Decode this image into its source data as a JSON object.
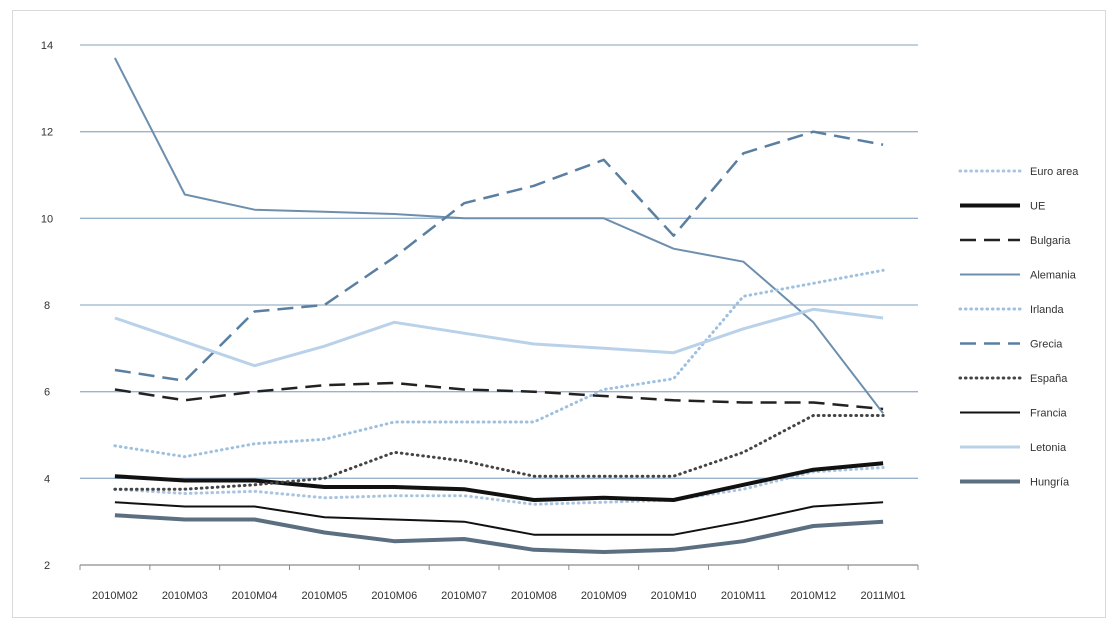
{
  "chart_data": {
    "type": "line",
    "title": "",
    "xlabel": "",
    "ylabel": "",
    "ylim": [
      2,
      14
    ],
    "y_ticks": [
      "2",
      "4",
      "6",
      "8",
      "10",
      "12",
      "14"
    ],
    "categories": [
      "2010M02",
      "2010M03",
      "2010M04",
      "2010M05",
      "2010M06",
      "2010M07",
      "2010M08",
      "2010M09",
      "2010M10",
      "2010M11",
      "2010M12",
      "2011M01"
    ],
    "grid": "horizontal",
    "legend_position": "right",
    "series": [
      {
        "name": "Euro area",
        "color": "#a9c4e0",
        "dash": "dotted",
        "width": 3,
        "values": [
          3.75,
          3.65,
          3.7,
          3.55,
          3.6,
          3.6,
          3.4,
          3.45,
          3.5,
          3.75,
          4.15,
          4.25
        ]
      },
      {
        "name": "UE",
        "color": "#111111",
        "dash": "solid",
        "width": 4,
        "values": [
          4.05,
          3.95,
          3.95,
          3.8,
          3.8,
          3.75,
          3.5,
          3.55,
          3.5,
          3.85,
          4.2,
          4.35
        ]
      },
      {
        "name": "Bulgaria",
        "color": "#222222",
        "dash": "dashed",
        "width": 2.5,
        "values": [
          6.05,
          5.8,
          6.0,
          6.15,
          6.2,
          6.05,
          6.0,
          5.9,
          5.8,
          5.75,
          5.75,
          5.6
        ]
      },
      {
        "name": "Alemania",
        "color": "#6d8fad",
        "dash": "solid",
        "width": 2,
        "values": [
          13.7,
          10.55,
          10.2,
          10.15,
          10.1,
          10.0,
          10.0,
          10.0,
          9.3,
          9.0,
          7.6,
          5.5
        ]
      },
      {
        "name": "Irlanda",
        "color": "#9ec0df",
        "dash": "dotted",
        "width": 3,
        "values": [
          4.75,
          4.5,
          4.8,
          4.9,
          5.3,
          5.3,
          5.3,
          6.05,
          6.3,
          8.2,
          8.5,
          8.8
        ]
      },
      {
        "name": "Grecia",
        "color": "#5a7fa0",
        "dash": "dashed",
        "width": 2.5,
        "values": [
          6.5,
          6.25,
          7.85,
          8.0,
          9.1,
          10.35,
          10.75,
          11.35,
          9.6,
          11.5,
          12.0,
          11.7
        ]
      },
      {
        "name": "España",
        "color": "#444444",
        "dash": "dotted",
        "width": 3,
        "values": [
          3.75,
          3.75,
          3.85,
          4.0,
          4.6,
          4.4,
          4.05,
          4.05,
          4.05,
          4.6,
          5.45,
          5.45
        ]
      },
      {
        "name": "Francia",
        "color": "#111111",
        "dash": "solid",
        "width": 2,
        "values": [
          3.45,
          3.35,
          3.35,
          3.1,
          3.05,
          3.0,
          2.7,
          2.7,
          2.7,
          3.0,
          3.35,
          3.45
        ]
      },
      {
        "name": "Letonia",
        "color": "#b9d2ea",
        "dash": "solid",
        "width": 3,
        "values": [
          7.7,
          7.15,
          6.6,
          7.05,
          7.6,
          7.35,
          7.1,
          7.0,
          6.9,
          7.45,
          7.9,
          7.7
        ]
      },
      {
        "name": "Hungría",
        "color": "#5b6f80",
        "dash": "solid",
        "width": 4,
        "values": [
          3.15,
          3.05,
          3.05,
          2.75,
          2.55,
          2.6,
          2.35,
          2.3,
          2.35,
          2.55,
          2.9,
          3.0
        ]
      }
    ]
  }
}
